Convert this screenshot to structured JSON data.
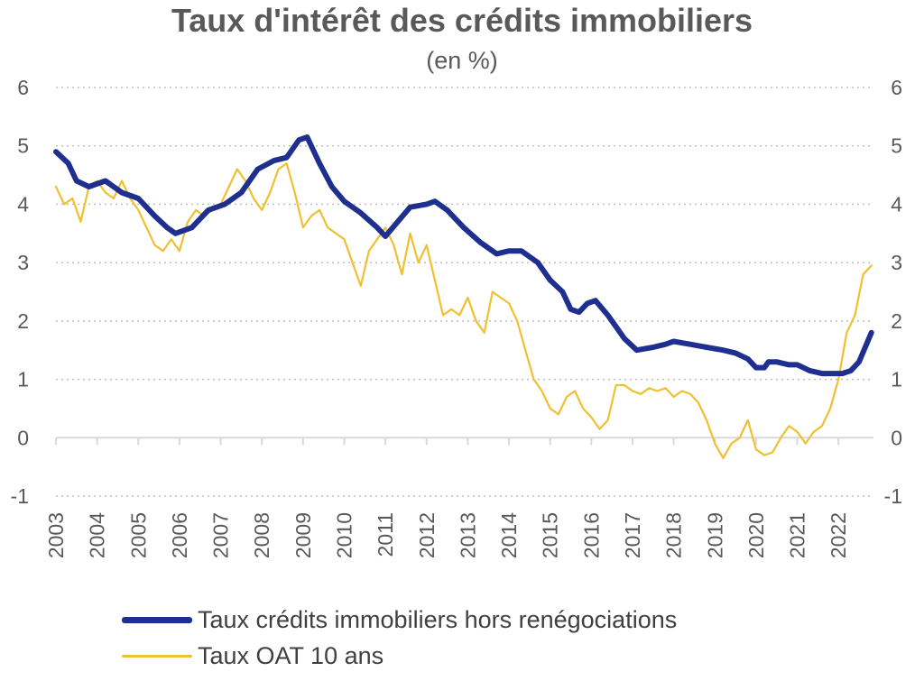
{
  "chart_data": {
    "type": "line",
    "title": "Taux d'intérêt des crédits immobiliers",
    "subtitle": "(en %)",
    "ylim": [
      -1,
      6
    ],
    "y_ticks": [
      "-1",
      "0",
      "1",
      "2",
      "3",
      "4",
      "5",
      "6"
    ],
    "x_ticks": [
      "2003",
      "2004",
      "2005",
      "2006",
      "2007",
      "2008",
      "2009",
      "2010",
      "2011",
      "2012",
      "2013",
      "2014",
      "2015",
      "2016",
      "2017",
      "2018",
      "2019",
      "2020",
      "2021",
      "2022"
    ],
    "xlim": [
      2003.0,
      2022.85
    ],
    "grid": "horizontal-dotted",
    "legend_position": "bottom",
    "series": [
      {
        "name": "Taux crédits immobiliers hors renégociations",
        "color": "#1f2f8f",
        "x": [
          2003.0,
          2003.3,
          2003.5,
          2003.8,
          2004.2,
          2004.6,
          2005.0,
          2005.4,
          2005.7,
          2005.9,
          2006.3,
          2006.7,
          2007.1,
          2007.5,
          2007.9,
          2008.3,
          2008.6,
          2008.9,
          2009.1,
          2009.4,
          2009.7,
          2010.0,
          2010.4,
          2010.8,
          2011.0,
          2011.3,
          2011.6,
          2012.0,
          2012.2,
          2012.5,
          2012.9,
          2013.3,
          2013.7,
          2014.0,
          2014.3,
          2014.7,
          2015.0,
          2015.3,
          2015.5,
          2015.7,
          2015.9,
          2016.1,
          2016.4,
          2016.8,
          2017.1,
          2017.5,
          2017.8,
          2018.0,
          2018.4,
          2018.8,
          2019.2,
          2019.5,
          2019.8,
          2020.0,
          2020.2,
          2020.3,
          2020.5,
          2020.8,
          2021.0,
          2021.3,
          2021.6,
          2021.9,
          2022.1,
          2022.3,
          2022.5,
          2022.8
        ],
        "values": [
          4.9,
          4.7,
          4.4,
          4.3,
          4.4,
          4.2,
          4.1,
          3.8,
          3.6,
          3.5,
          3.6,
          3.9,
          4.0,
          4.2,
          4.6,
          4.75,
          4.8,
          5.1,
          5.15,
          4.7,
          4.3,
          4.05,
          3.85,
          3.6,
          3.45,
          3.7,
          3.95,
          4.0,
          4.05,
          3.9,
          3.6,
          3.35,
          3.15,
          3.2,
          3.2,
          3.0,
          2.7,
          2.5,
          2.2,
          2.15,
          2.3,
          2.35,
          2.1,
          1.7,
          1.5,
          1.55,
          1.6,
          1.65,
          1.6,
          1.55,
          1.5,
          1.45,
          1.35,
          1.2,
          1.2,
          1.3,
          1.3,
          1.25,
          1.25,
          1.15,
          1.1,
          1.1,
          1.1,
          1.15,
          1.3,
          1.8
        ]
      },
      {
        "name": "Taux OAT 10 ans",
        "color": "#f0c030",
        "x": [
          2003.0,
          2003.2,
          2003.4,
          2003.6,
          2003.8,
          2004.0,
          2004.2,
          2004.4,
          2004.6,
          2004.8,
          2005.0,
          2005.2,
          2005.4,
          2005.6,
          2005.8,
          2006.0,
          2006.2,
          2006.4,
          2006.6,
          2006.8,
          2007.0,
          2007.2,
          2007.4,
          2007.6,
          2007.8,
          2008.0,
          2008.2,
          2008.4,
          2008.6,
          2008.8,
          2009.0,
          2009.2,
          2009.4,
          2009.6,
          2009.8,
          2010.0,
          2010.2,
          2010.4,
          2010.6,
          2010.8,
          2011.0,
          2011.2,
          2011.4,
          2011.6,
          2011.8,
          2012.0,
          2012.2,
          2012.4,
          2012.6,
          2012.8,
          2013.0,
          2013.2,
          2013.4,
          2013.6,
          2013.8,
          2014.0,
          2014.2,
          2014.4,
          2014.6,
          2014.8,
          2015.0,
          2015.2,
          2015.4,
          2015.6,
          2015.8,
          2016.0,
          2016.2,
          2016.4,
          2016.6,
          2016.8,
          2017.0,
          2017.2,
          2017.4,
          2017.6,
          2017.8,
          2018.0,
          2018.2,
          2018.4,
          2018.6,
          2018.8,
          2019.0,
          2019.2,
          2019.4,
          2019.6,
          2019.8,
          2020.0,
          2020.2,
          2020.4,
          2020.6,
          2020.8,
          2021.0,
          2021.2,
          2021.4,
          2021.6,
          2021.8,
          2022.0,
          2022.2,
          2022.4,
          2022.6,
          2022.8
        ],
        "values": [
          4.3,
          4.0,
          4.1,
          3.7,
          4.3,
          4.4,
          4.2,
          4.1,
          4.4,
          4.1,
          3.9,
          3.6,
          3.3,
          3.2,
          3.4,
          3.2,
          3.7,
          3.9,
          3.8,
          3.9,
          4.0,
          4.3,
          4.6,
          4.4,
          4.1,
          3.9,
          4.2,
          4.6,
          4.7,
          4.2,
          3.6,
          3.8,
          3.9,
          3.6,
          3.5,
          3.4,
          3.0,
          2.6,
          3.2,
          3.4,
          3.6,
          3.3,
          2.8,
          3.5,
          3.0,
          3.3,
          2.7,
          2.1,
          2.2,
          2.1,
          2.4,
          2.0,
          1.8,
          2.5,
          2.4,
          2.3,
          2.0,
          1.5,
          1.0,
          0.8,
          0.5,
          0.4,
          0.7,
          0.8,
          0.5,
          0.35,
          0.15,
          0.3,
          0.9,
          0.9,
          0.8,
          0.75,
          0.85,
          0.8,
          0.85,
          0.7,
          0.8,
          0.75,
          0.6,
          0.3,
          -0.1,
          -0.35,
          -0.1,
          0.0,
          0.3,
          -0.2,
          -0.3,
          -0.25,
          0.0,
          0.2,
          0.1,
          -0.1,
          0.1,
          0.2,
          0.5,
          1.0,
          1.8,
          2.1,
          2.8,
          2.95
        ]
      }
    ]
  }
}
